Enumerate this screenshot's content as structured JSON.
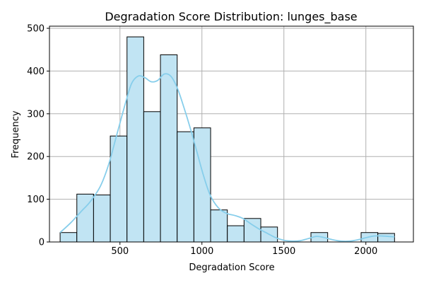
{
  "chart_data": {
    "type": "bar",
    "subtype": "histogram-with-kde",
    "title": "Degradation Score Distribution: lunges_base",
    "xlabel": "Degradation Score",
    "ylabel": "Frequency",
    "xlim": [
      70,
      2290
    ],
    "ylim": [
      0,
      505
    ],
    "xticks": [
      500,
      1000,
      1500,
      2000
    ],
    "yticks": [
      0,
      100,
      200,
      300,
      400,
      500
    ],
    "grid": true,
    "bar_color": "#c1e4f3",
    "bar_edge_color": "#000000",
    "kde_color": "#87ceeb",
    "bins": [
      {
        "x0": 135,
        "x1": 237,
        "count": 22
      },
      {
        "x0": 237,
        "x1": 339,
        "count": 112
      },
      {
        "x0": 339,
        "x1": 441,
        "count": 110
      },
      {
        "x0": 441,
        "x1": 543,
        "count": 248
      },
      {
        "x0": 543,
        "x1": 645,
        "count": 480
      },
      {
        "x0": 645,
        "x1": 747,
        "count": 305
      },
      {
        "x0": 747,
        "x1": 849,
        "count": 438
      },
      {
        "x0": 849,
        "x1": 951,
        "count": 258
      },
      {
        "x0": 951,
        "x1": 1053,
        "count": 267
      },
      {
        "x0": 1053,
        "x1": 1155,
        "count": 75
      },
      {
        "x0": 1155,
        "x1": 1257,
        "count": 38
      },
      {
        "x0": 1257,
        "x1": 1359,
        "count": 55
      },
      {
        "x0": 1359,
        "x1": 1461,
        "count": 35
      },
      {
        "x0": 1461,
        "x1": 1563,
        "count": 0
      },
      {
        "x0": 1563,
        "x1": 1665,
        "count": 0
      },
      {
        "x0": 1665,
        "x1": 1767,
        "count": 22
      },
      {
        "x0": 1767,
        "x1": 1869,
        "count": 0
      },
      {
        "x0": 1869,
        "x1": 1971,
        "count": 0
      },
      {
        "x0": 1971,
        "x1": 2073,
        "count": 22
      },
      {
        "x0": 2073,
        "x1": 2175,
        "count": 20
      }
    ],
    "kde": {
      "x": [
        135,
        200,
        260,
        320,
        380,
        430,
        480,
        530,
        570,
        610,
        650,
        690,
        730,
        770,
        810,
        850,
        890,
        930,
        970,
        1010,
        1050,
        1100,
        1150,
        1200,
        1250,
        1300,
        1350,
        1400,
        1450,
        1500,
        1550,
        1600,
        1650,
        1700,
        1750,
        1800,
        1850,
        1900,
        1950,
        2000,
        2050,
        2100,
        2175
      ],
      "y": [
        22,
        45,
        70,
        95,
        130,
        180,
        250,
        320,
        370,
        388,
        385,
        375,
        378,
        393,
        388,
        360,
        315,
        265,
        210,
        155,
        110,
        80,
        67,
        62,
        55,
        42,
        30,
        20,
        10,
        4,
        2,
        3,
        8,
        13,
        10,
        5,
        2,
        2,
        5,
        10,
        14,
        14,
        12
      ]
    }
  }
}
